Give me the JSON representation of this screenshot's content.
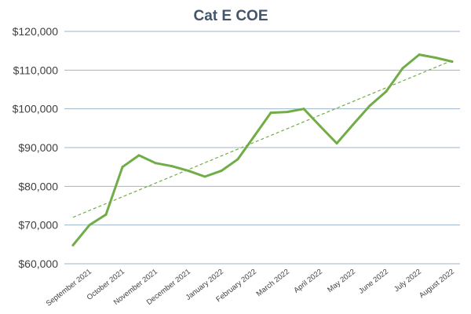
{
  "chart_data": {
    "type": "line",
    "title": "Cat E COE",
    "xlabel": "",
    "ylabel": "",
    "ylim": [
      60000,
      120000
    ],
    "y_ticks": [
      60000,
      70000,
      80000,
      90000,
      100000,
      110000,
      120000
    ],
    "y_tick_labels": [
      "$60,000",
      "$70,000",
      "$80,000",
      "$90,000",
      "$100,000",
      "$110,000",
      "$120,000"
    ],
    "x_tick_labels": [
      "September 2021",
      "October 2021",
      "November 2021",
      "December 2021",
      "January 2022",
      "February 2022",
      "March 2022",
      "April 2022",
      "May 2022",
      "June 2022",
      "July 2022",
      "August 2022"
    ],
    "x": [
      0,
      0.5,
      1,
      1.5,
      2,
      2.5,
      3,
      3.5,
      4,
      4.5,
      5,
      5.5,
      6,
      6.5,
      7,
      7.5,
      8,
      8.5,
      9,
      9.5,
      10,
      10.5,
      11,
      11.5
    ],
    "series": [
      {
        "values": [
          64800,
          70000,
          72700,
          85000,
          88000,
          86000,
          85200,
          84000,
          82500,
          84000,
          87000,
          93000,
          99000,
          99200,
          100000,
          95500,
          91100,
          96000,
          100800,
          104500,
          110500,
          114000,
          113200,
          112200
        ],
        "color": "#70ad47",
        "style": "solid"
      }
    ],
    "trendline": {
      "type": "linear",
      "color": "#70ad47",
      "style": "dashed",
      "x": [
        0,
        11.5
      ],
      "values": [
        72000,
        112500
      ]
    },
    "grid": true,
    "legend": "none",
    "colors": {
      "grid": "#9fb6cd",
      "text": "#404040",
      "title": "#44546a"
    }
  }
}
